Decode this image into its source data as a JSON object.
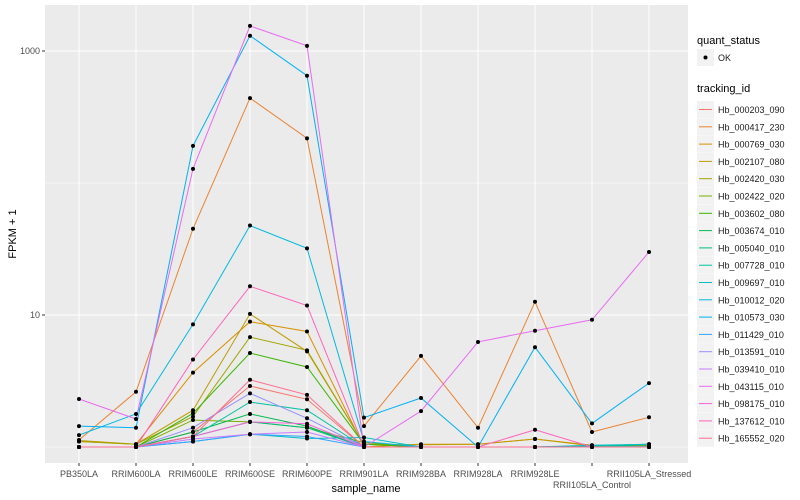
{
  "chart_data": {
    "type": "line",
    "xlabel": "sample_name",
    "ylabel": "FPKM + 1",
    "y_scale": "log10",
    "ylim": [
      1,
      2200
    ],
    "y_ticks": [
      10,
      1000
    ],
    "y_tick_labels": [
      "10",
      "1000"
    ],
    "grid": true,
    "legend_position": "right",
    "categories": [
      "PB350LA",
      "RRIM600LA",
      "RRIM600LE",
      "RRIM600SE",
      "RRIM600PE",
      "RRIM901LA",
      "RRIM928BA",
      "RRIM928LA",
      "RRIM928LE",
      "RRII105LA_Control",
      "RRII105LA_Stressed"
    ],
    "point_legend": {
      "title": "quant_status",
      "entries": [
        "OK"
      ]
    },
    "line_legend_title": "tracking_id",
    "series": [
      {
        "name": "Hb_000203_090",
        "color": "#F8766D",
        "values": [
          1,
          1,
          1.3,
          2.9,
          2.3,
          1,
          1,
          1,
          1,
          1,
          1
        ]
      },
      {
        "name": "Hb_000417_230",
        "color": "#EA8331",
        "values": [
          1.13,
          2.62,
          45,
          440,
          218,
          1.44,
          4.9,
          1.4,
          12.6,
          1.3,
          1.68
        ]
      },
      {
        "name": "Hb_000769_030",
        "color": "#D89000",
        "values": [
          1.1,
          1.05,
          3.66,
          8.9,
          7.5,
          1,
          1.05,
          1.05,
          1.15,
          1.03,
          1.03
        ]
      },
      {
        "name": "Hb_002107_080",
        "color": "#C09B00",
        "values": [
          1.12,
          1.05,
          1.9,
          10.2,
          5.3,
          1.05,
          1.04,
          1.05,
          1.15,
          1.02,
          1.05
        ]
      },
      {
        "name": "Hb_002420_030",
        "color": "#A3A500",
        "values": [
          1.1,
          1.05,
          1.7,
          6.8,
          5.4,
          1.05,
          1,
          1,
          1,
          1,
          1
        ]
      },
      {
        "name": "Hb_002422_020",
        "color": "#7CAE00",
        "values": [
          1,
          1,
          1.6,
          1.55,
          1.4,
          1.08,
          1,
          1,
          1,
          1,
          1
        ]
      },
      {
        "name": "Hb_003602_080",
        "color": "#39B600",
        "values": [
          1,
          1,
          1.8,
          5.15,
          4.04,
          1.05,
          1,
          1,
          1,
          1,
          1
        ]
      },
      {
        "name": "Hb_003674_010",
        "color": "#00BB4E",
        "values": [
          1,
          1,
          1.3,
          1.78,
          1.44,
          1,
          1,
          1,
          1,
          1,
          1
        ]
      },
      {
        "name": "Hb_005040_010",
        "color": "#00BF7D",
        "values": [
          1,
          1,
          1.2,
          1.55,
          1.4,
          1,
          1,
          1,
          1,
          1.02,
          1.02
        ]
      },
      {
        "name": "Hb_007728_010",
        "color": "#00C1A3",
        "values": [
          1,
          1,
          1.2,
          2.19,
          1.9,
          1,
          1,
          1,
          1,
          1.02,
          1.05
        ]
      },
      {
        "name": "Hb_009697_010",
        "color": "#00BFC4",
        "values": [
          1,
          1,
          1.1,
          1.25,
          1.16,
          1.18,
          1,
          1,
          1,
          1.03,
          1.05
        ]
      },
      {
        "name": "Hb_010012_020",
        "color": "#00BAE0",
        "values": [
          1.23,
          1.78,
          8.5,
          47.6,
          32,
          1.1,
          1,
          1,
          1,
          1,
          1
        ]
      },
      {
        "name": "Hb_010573_030",
        "color": "#00B0F6",
        "values": [
          1.44,
          1.4,
          191,
          1306,
          650,
          1.67,
          2.35,
          1.0,
          5.7,
          1.51,
          3.05
        ]
      },
      {
        "name": "Hb_011429_010",
        "color": "#35A2FF",
        "values": [
          1,
          1,
          1.1,
          1.25,
          1.2,
          1,
          1,
          1,
          1,
          1,
          1
        ]
      },
      {
        "name": "Hb_013591_010",
        "color": "#9590FF",
        "values": [
          1,
          1,
          1.4,
          2.55,
          1.65,
          1,
          1,
          1,
          1,
          1,
          1
        ]
      },
      {
        "name": "Hb_039410_010",
        "color": "#C77CFF",
        "values": [
          1,
          1,
          1.15,
          1.25,
          1.3,
          1,
          1,
          1,
          1,
          1,
          1
        ]
      },
      {
        "name": "Hb_043115_010",
        "color": "#E76BF3",
        "values": [
          2.31,
          1.63,
          128,
          1549,
          1094,
          1.0,
          1.87,
          6.25,
          7.6,
          9.2,
          30
        ]
      },
      {
        "name": "Hb_098175_010",
        "color": "#FA62DB",
        "values": [
          1,
          1,
          1.2,
          1.55,
          1.5,
          1,
          1,
          1,
          1,
          1,
          1
        ]
      },
      {
        "name": "Hb_137612_010",
        "color": "#FF62BC",
        "values": [
          1,
          1,
          4.6,
          16.5,
          11.8,
          1,
          1,
          1,
          1.35,
          1,
          1
        ]
      },
      {
        "name": "Hb_165552_020",
        "color": "#FF6C91",
        "values": [
          1,
          1,
          1.2,
          3.23,
          2.48,
          1,
          1,
          1,
          1,
          1,
          1
        ]
      }
    ]
  }
}
